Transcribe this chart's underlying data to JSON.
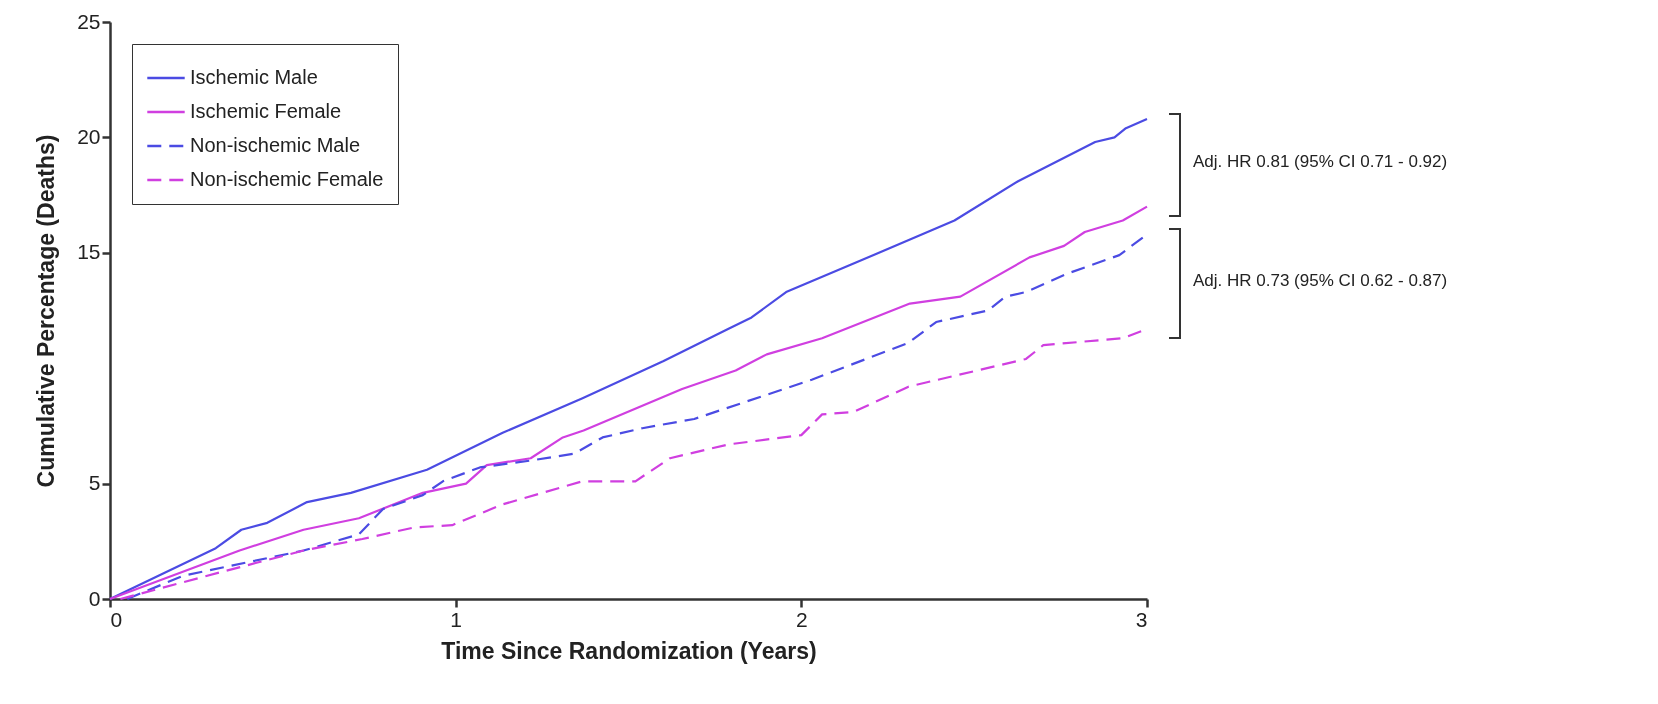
{
  "chart_data": {
    "type": "line",
    "xlabel": "Time Since Randomization (Years)",
    "ylabel": "Cumulative Percentage (Deaths)",
    "xlim": [
      0,
      3
    ],
    "xticks": [
      0,
      1,
      2,
      3
    ],
    "ylim": [
      0,
      25
    ],
    "yticks": [
      0,
      5,
      15,
      20,
      25
    ],
    "grid": false,
    "legend": "top left",
    "marker": "none",
    "annotations": [
      "Adj. HR 0.81 (95% CI 0.71 - 0.92)",
      "Adj. HR 0.73 (95% CI 0.62 - 0.87)"
    ],
    "series": [
      {
        "name": "Ischemic Male",
        "color": "#4b4be3",
        "line_style": "solid",
        "x": [
          0,
          0.306,
          0.38,
          0.455,
          0.57,
          0.697,
          0.917,
          1.136,
          1.367,
          1.6,
          1.788,
          1.856,
          1.956,
          2.146,
          2.443,
          2.627,
          2.85,
          2.906,
          2.939,
          3
        ],
        "values": [
          0,
          2.2,
          3.0,
          3.3,
          4.2,
          4.6,
          5.6,
          7.2,
          8.7,
          10.3,
          11.7,
          12.2,
          13.3,
          14.5,
          16.4,
          18.1,
          19.8,
          20.0,
          20.4,
          20.8
        ]
      },
      {
        "name": "Ischemic Female",
        "color": "#d03fe0",
        "line_style": "solid",
        "x": [
          0,
          0.375,
          0.56,
          0.72,
          0.905,
          1.03,
          1.09,
          1.217,
          1.31,
          1.37,
          1.655,
          1.81,
          1.9,
          2.06,
          2.314,
          2.46,
          2.66,
          2.76,
          2.82,
          2.93,
          3
        ],
        "values": [
          0,
          2.1,
          3.0,
          3.5,
          4.6,
          5.0,
          5.8,
          6.1,
          7.0,
          7.3,
          9.1,
          9.9,
          10.6,
          11.3,
          12.8,
          13.1,
          14.8,
          15.3,
          15.9,
          16.4,
          17.0
        ]
      },
      {
        "name": "Non-ischemic Male",
        "color": "#4b4be3",
        "line_style": "dashed",
        "x": [
          0.05,
          0.21,
          0.56,
          0.72,
          0.79,
          0.905,
          0.963,
          1.07,
          1.217,
          1.344,
          1.425,
          1.54,
          1.69,
          2.03,
          2.31,
          2.39,
          2.54,
          2.59,
          2.65,
          2.77,
          2.92,
          3
        ],
        "values": [
          0,
          1.0,
          2.1,
          2.8,
          3.9,
          4.5,
          5.1,
          5.7,
          6.0,
          6.3,
          7.0,
          7.4,
          7.8,
          9.5,
          11.1,
          12.0,
          12.5,
          13.1,
          13.3,
          14.1,
          14.9,
          15.8
        ]
      },
      {
        "name": "Non-ischemic Female",
        "color": "#d03fe0",
        "line_style": "dashed",
        "x": [
          0.03,
          0.33,
          0.56,
          0.73,
          0.88,
          0.99,
          1.136,
          1.367,
          1.52,
          1.62,
          1.79,
          2.0,
          2.06,
          2.15,
          2.31,
          2.65,
          2.7,
          2.93,
          3
        ],
        "values": [
          0,
          1.2,
          2.1,
          2.6,
          3.1,
          3.2,
          4.1,
          5.1,
          5.1,
          6.1,
          6.7,
          7.1,
          8.0,
          8.1,
          9.2,
          10.4,
          11.0,
          11.3,
          11.7
        ]
      }
    ]
  }
}
